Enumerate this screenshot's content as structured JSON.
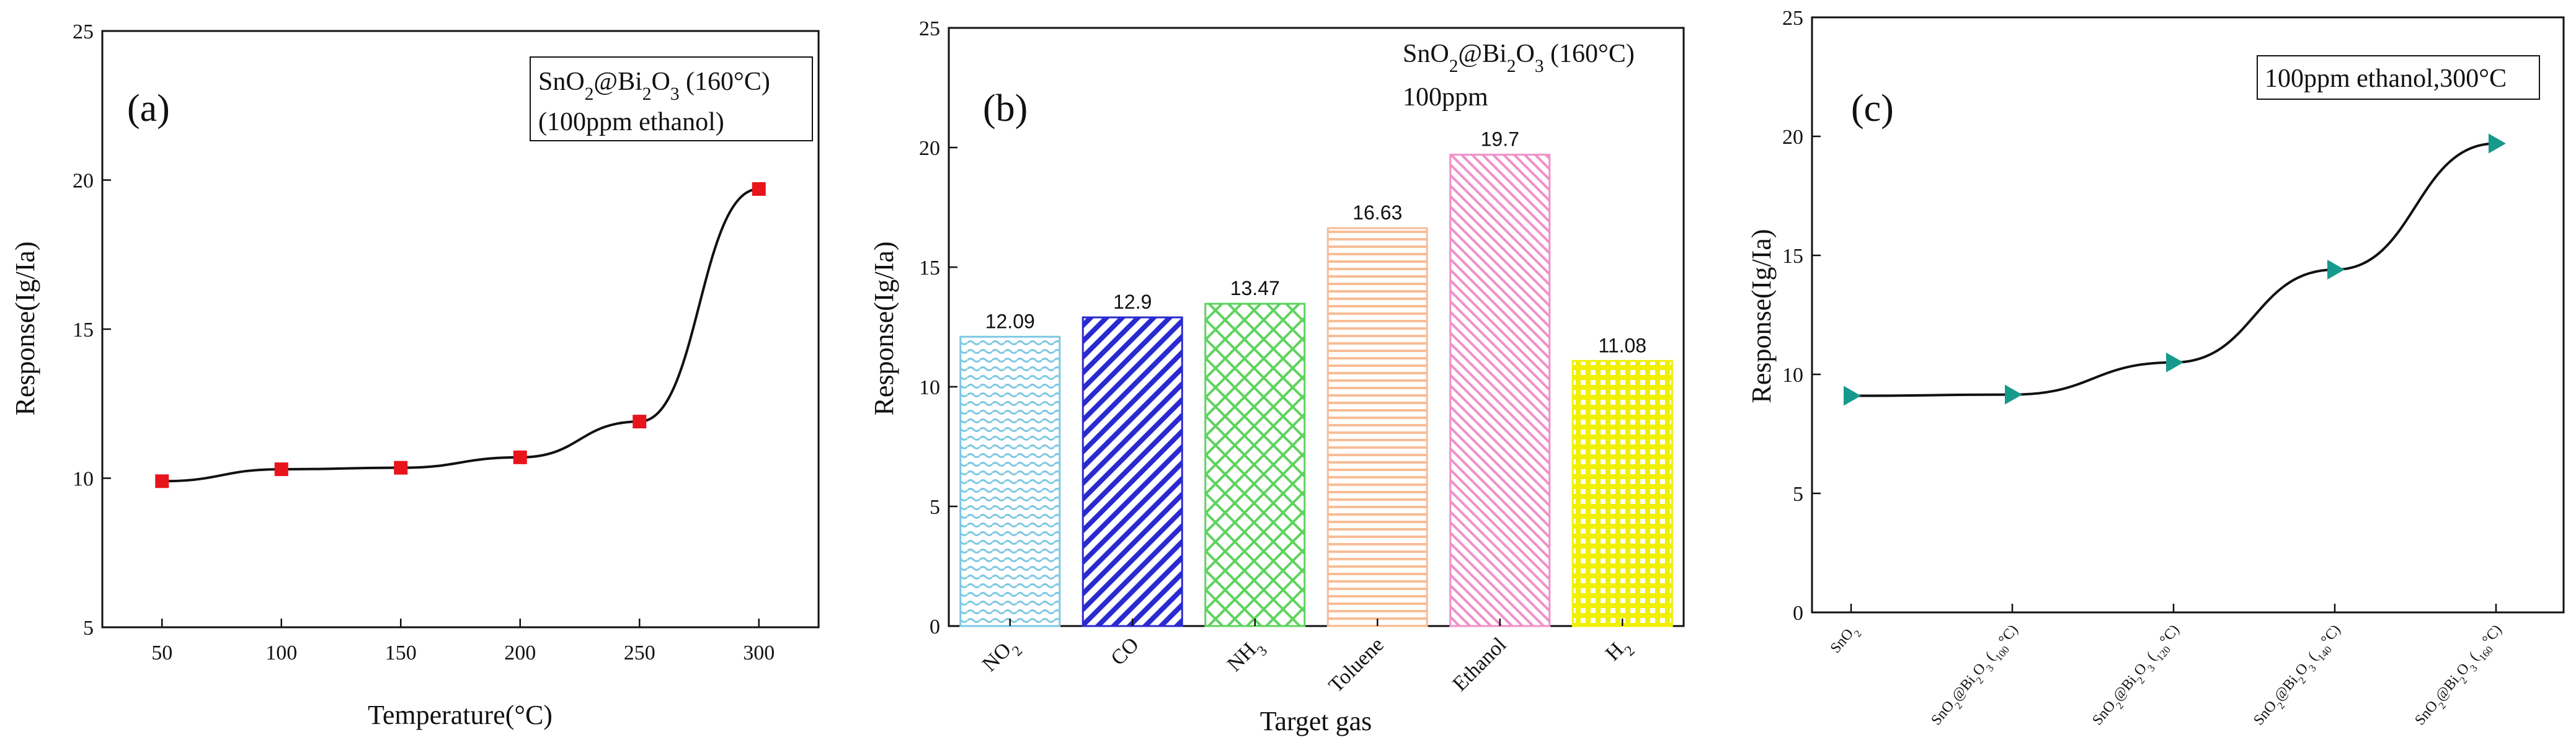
{
  "chart_data": [
    {
      "id": "a",
      "type": "line",
      "panel_label": "(a)",
      "legend_lines": [
        "SnO2@Bi2O3 (160°C)",
        "(100ppm ethanol)"
      ],
      "xlabel": "Temperature(°C)",
      "ylabel": "Response(Ig/Ia)",
      "x": [
        50,
        100,
        150,
        200,
        250,
        300
      ],
      "values": [
        9.9,
        10.3,
        10.35,
        10.7,
        11.9,
        19.7
      ],
      "xlim": [
        25,
        325
      ],
      "ylim": [
        5,
        25
      ],
      "xticks": [
        50,
        100,
        150,
        200,
        250,
        300
      ],
      "yticks": [
        5,
        10,
        15,
        20,
        25
      ],
      "marker": "square",
      "marker_color": "#e8141c",
      "line_color": "#111111"
    },
    {
      "id": "b",
      "type": "bar",
      "panel_label": "(b)",
      "legend_lines": [
        "SnO2@Bi2O3 (160°C)",
        "100ppm"
      ],
      "xlabel": "Target gas",
      "ylabel": "Response(Ig/Ia)",
      "categories": [
        "NO2",
        "CO",
        "NH3",
        "Toluene",
        "Ethanol",
        "H2"
      ],
      "values": [
        12.09,
        12.9,
        13.47,
        16.63,
        19.7,
        11.08
      ],
      "value_labels": [
        "12.09",
        "12.9",
        "13.47",
        "16.63",
        "19.7",
        "11.08"
      ],
      "colors": [
        "#7ec8e3",
        "#2a2ad0",
        "#5ed35e",
        "#f7bd96",
        "#f090c8",
        "#f0f000"
      ],
      "patterns": [
        "hwave",
        "diag",
        "cross",
        "hlines",
        "diag2",
        "grid"
      ],
      "ylim": [
        0,
        25
      ],
      "yticks": [
        0,
        5,
        10,
        15,
        20,
        25
      ]
    },
    {
      "id": "c",
      "type": "line",
      "panel_label": "(c)",
      "legend_lines": [
        "100ppm ethanol,300°C"
      ],
      "xlabel": "",
      "ylabel": "Response(Ig/Ia)",
      "categories": [
        "SnO2",
        "SnO2@Bi2O3 (100°C)",
        "SnO2@Bi2O3 (120°C)",
        "SnO2@Bi2O3 (140°C)",
        "SnO2@Bi2O3 (160°C)"
      ],
      "values": [
        9.1,
        9.15,
        10.5,
        14.4,
        19.7
      ],
      "ylim": [
        0,
        25
      ],
      "yticks": [
        0,
        5,
        10,
        15,
        20,
        25
      ],
      "marker": "triangle-right",
      "marker_color": "#169a8c",
      "line_color": "#111111"
    }
  ]
}
